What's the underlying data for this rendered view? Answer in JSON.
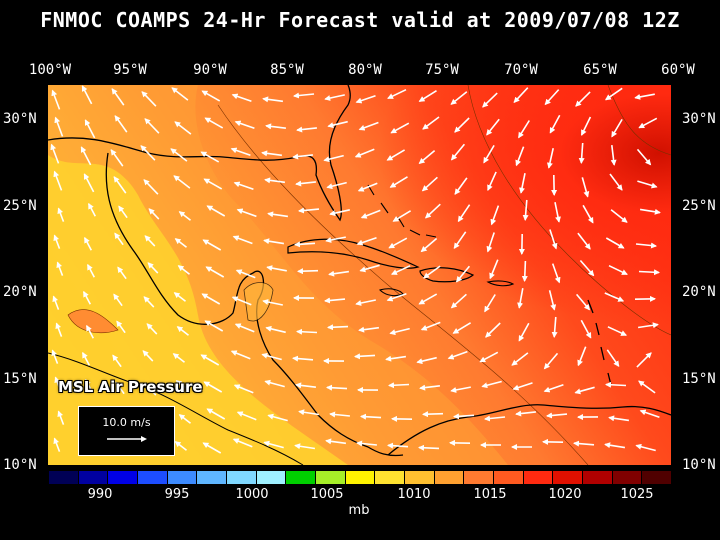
{
  "title": "FNMOC COAMPS 24-Hr Forecast valid at 2009/07/08 12Z",
  "longitude_labels": [
    "100°W",
    "95°W",
    "90°W",
    "85°W",
    "80°W",
    "75°W",
    "70°W",
    "65°W",
    "60°W"
  ],
  "latitude_labels": [
    "30°N",
    "25°N",
    "20°N",
    "15°N",
    "10°N"
  ],
  "field_label": "MSL Air Pressure",
  "scale_label": "10.0 m/s",
  "colorbar": {
    "colors": [
      "#000055",
      "#0000a0",
      "#0000e6",
      "#1d4dff",
      "#3d8bff",
      "#5fb6ff",
      "#80d8ff",
      "#9ff0ff",
      "#00d000",
      "#a6ee28",
      "#fff200",
      "#ffe230",
      "#ffc030",
      "#ffa030",
      "#ff7a30",
      "#ff5a20",
      "#ff2a10",
      "#e01000",
      "#b00000",
      "#800000",
      "#500000"
    ],
    "tick_labels": [
      "990",
      "995",
      "1000",
      "1005",
      "1010",
      "1015",
      "1020",
      "1025"
    ],
    "units": "mb"
  },
  "map": {
    "extent": {
      "lon": [
        -100,
        -60
      ],
      "lat": [
        10,
        32
      ]
    },
    "fill_colors": {
      "low": "#ffcf2e",
      "mid_low": "#ffb33a",
      "mid": "#ff8c32",
      "high": "#ff5a20",
      "highest": "#ff2a10",
      "peak": "#d01000"
    },
    "wind_arrow_color": "#ffffff",
    "coastline_color": "#000000"
  }
}
